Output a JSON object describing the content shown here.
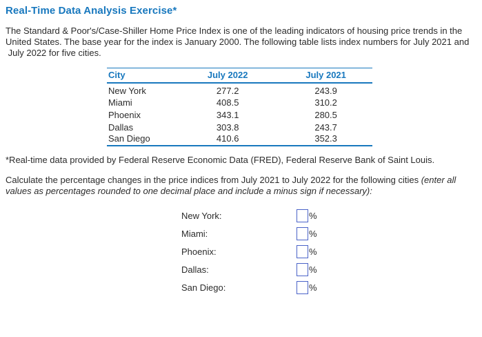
{
  "page": {
    "title": "Real-Time Data Analysis Exercise*"
  },
  "intro": {
    "lines": [
      "The Standard & Poor's/Case-Shiller Home Price Index is one of the leading indicators of housing price trends in the",
      "United States. The base year for the index is January 2000. The following table lists index numbers for July 2021 and",
      " July 2022 for five cities."
    ]
  },
  "table": {
    "headers": {
      "city": "City",
      "july_2022": "July 2022",
      "july_2021": "July 2021"
    },
    "rows": [
      {
        "city": "New York",
        "july_2022": "277.2",
        "july_2021": "243.9"
      },
      {
        "city": "Miami",
        "july_2022": "408.5",
        "july_2021": "310.2"
      },
      {
        "city": "Phoenix",
        "july_2022": "343.1",
        "july_2021": "280.5"
      },
      {
        "city": "Dallas",
        "july_2022": "303.8",
        "july_2021": "243.7"
      },
      {
        "city": "San Diego",
        "july_2022": "410.6",
        "july_2021": "352.3"
      }
    ]
  },
  "footnote": "*Real-time data provided by Federal Reserve Economic Data (FRED), Federal Reserve Bank of Saint Louis.",
  "instructions": {
    "normal": "Calculate the percentage changes in the price indices from July 2021 to July 2022 for the following cities ",
    "italic": "(enter all values as percentages rounded to one decimal place and include a minus sign if necessary):"
  },
  "form": {
    "unit": "%",
    "fields": [
      {
        "label": "New York:",
        "value": ""
      },
      {
        "label": "Miami:",
        "value": ""
      },
      {
        "label": "Phoenix:",
        "value": ""
      },
      {
        "label": "Dallas:",
        "value": ""
      },
      {
        "label": "San Diego:",
        "value": ""
      }
    ]
  },
  "theme": {
    "accent_blue": "#1878be",
    "input_border_blue": "#4a63c8",
    "text_color": "#2b2b2b",
    "background": "#ffffff"
  }
}
